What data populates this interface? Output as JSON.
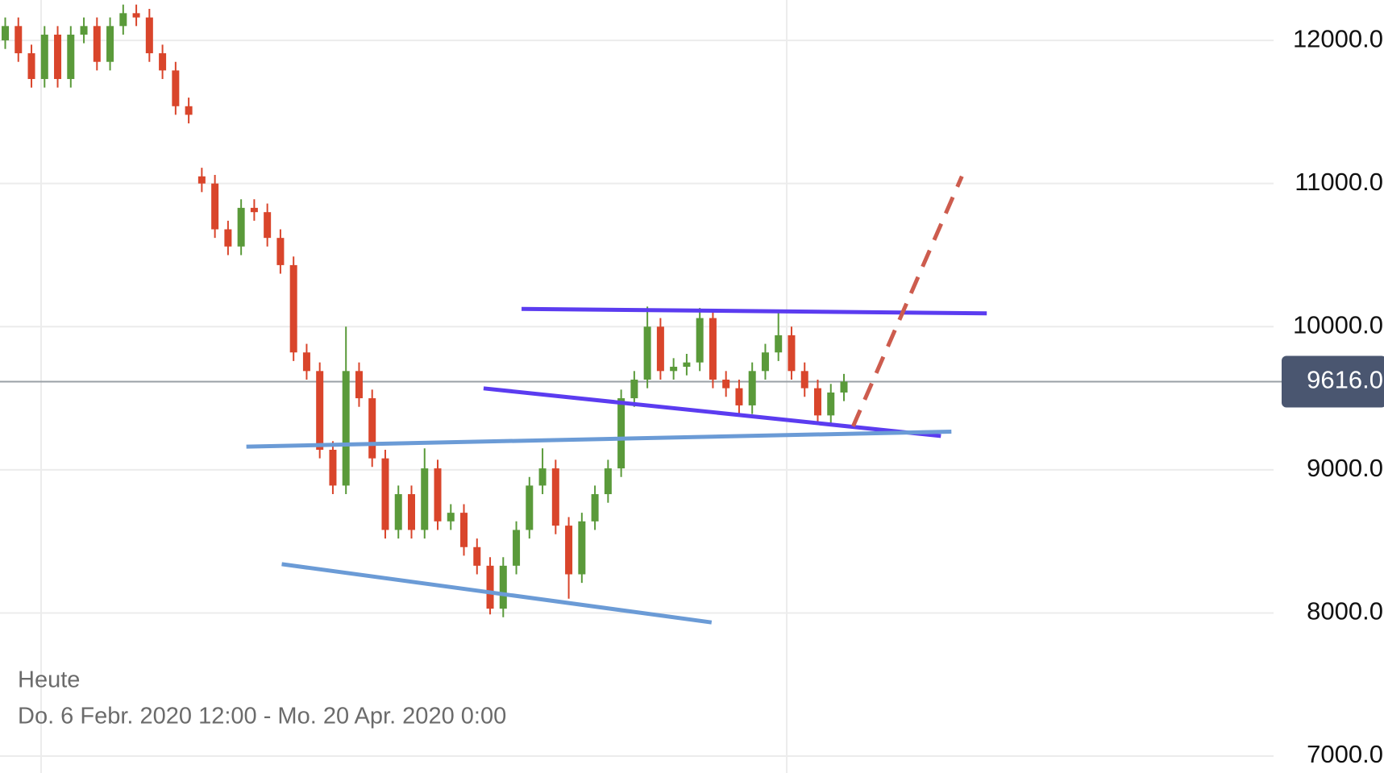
{
  "chart_data": {
    "type": "candlestick",
    "caption": "Heute",
    "date_range": "Do. 6 Febr. 2020 12:00 - Mo. 20 Apr. 2020 0:00",
    "x": [
      0,
      1,
      2,
      3,
      4,
      5,
      6,
      7,
      8,
      9,
      10,
      11,
      12,
      13,
      14,
      15,
      16,
      17,
      18,
      19,
      20,
      21,
      22,
      23,
      24,
      25,
      26,
      27,
      28,
      29,
      30,
      31,
      32,
      33,
      34,
      35,
      36,
      37,
      38,
      39,
      40,
      41,
      42,
      43,
      44,
      45,
      46,
      47,
      48,
      49,
      50,
      51,
      52,
      53,
      54,
      55,
      56,
      57,
      58,
      59,
      60,
      61,
      62,
      63,
      64
    ],
    "open": [
      12000,
      12100,
      11910,
      11730,
      12040,
      11730,
      12040,
      12100,
      11850,
      12100,
      12190,
      12160,
      11910,
      11790,
      11540,
      11050,
      11000,
      10680,
      10560,
      10830,
      10800,
      10620,
      10430,
      9820,
      9690,
      9140,
      8890,
      9690,
      9500,
      9080,
      8580,
      8830,
      8580,
      9010,
      8640,
      8700,
      8460,
      8330,
      8030,
      8330,
      8580,
      8890,
      9010,
      8610,
      8270,
      8640,
      8830,
      9010,
      9500,
      9630,
      10000,
      9690,
      9720,
      9750,
      10060,
      9630,
      9570,
      9450,
      9690,
      9820,
      9940,
      9690,
      9570,
      9380,
      9540
    ],
    "high": [
      12160,
      12160,
      11970,
      12100,
      12100,
      12100,
      12160,
      12160,
      12160,
      12250,
      12250,
      12220,
      11970,
      11850,
      11600,
      11110,
      11060,
      10740,
      10890,
      10890,
      10860,
      10680,
      10490,
      9880,
      9750,
      9200,
      10000,
      9750,
      9560,
      9140,
      8890,
      8890,
      9150,
      9070,
      8760,
      8760,
      8520,
      8390,
      8390,
      8640,
      8950,
      9150,
      9070,
      8670,
      8700,
      8890,
      9070,
      9560,
      9690,
      10140,
      10060,
      9780,
      9810,
      10130,
      10120,
      9690,
      9630,
      9750,
      9880,
      10100,
      10000,
      9750,
      9630,
      9600,
      9670
    ],
    "low": [
      11940,
      11850,
      11670,
      11670,
      11670,
      11670,
      11980,
      11790,
      11790,
      12040,
      12100,
      11850,
      11730,
      11480,
      11420,
      10940,
      10620,
      10500,
      10500,
      10740,
      10560,
      10370,
      9760,
      9630,
      9080,
      8830,
      8830,
      9440,
      9020,
      8520,
      8520,
      8520,
      8520,
      8580,
      8580,
      8400,
      8270,
      7990,
      7970,
      8270,
      8520,
      8830,
      8550,
      8100,
      8210,
      8580,
      8770,
      8950,
      9440,
      9570,
      9630,
      9630,
      9660,
      9690,
      9570,
      9510,
      9390,
      9390,
      9630,
      9760,
      9630,
      9510,
      9320,
      9320,
      9480
    ],
    "close": [
      12100,
      11910,
      11730,
      12040,
      11730,
      12040,
      12100,
      11850,
      12100,
      12190,
      12160,
      11910,
      11790,
      11540,
      11480,
      11000,
      10680,
      10560,
      10830,
      10800,
      10620,
      10430,
      9820,
      9690,
      9140,
      8890,
      9690,
      9500,
      9080,
      8580,
      8830,
      8580,
      9010,
      8640,
      8700,
      8460,
      8330,
      8030,
      8330,
      8580,
      8890,
      9010,
      8610,
      8270,
      8640,
      8830,
      9010,
      9500,
      9630,
      10000,
      9690,
      9720,
      9750,
      10060,
      9630,
      9570,
      9450,
      9690,
      9820,
      9940,
      9690,
      9570,
      9380,
      9540,
      9616
    ],
    "up_color": "#5a9a3a",
    "down_color": "#d9452b",
    "xlim": [
      -0.4,
      96.6
    ],
    "ylim": [
      6882,
      12282
    ],
    "yticks": [
      {
        "value": 7000,
        "label": "7000.0"
      },
      {
        "value": 8000,
        "label": "8000.0"
      },
      {
        "value": 9000,
        "label": "9000.0"
      },
      {
        "value": 10000,
        "label": "10000.0"
      },
      {
        "value": 11000,
        "label": "11000.0"
      },
      {
        "value": 12000,
        "label": "12000.0"
      }
    ],
    "grid": true,
    "last_price": {
      "value": 9616,
      "label": "9616.0"
    },
    "trend_lines": [
      {
        "color": "#5b3cf0",
        "dashed": false,
        "x": [
          39.4,
          74.9
        ],
        "y": [
          10124,
          10093
        ]
      },
      {
        "color": "#5b3cf0",
        "dashed": false,
        "x": [
          36.5,
          71.4
        ],
        "y": [
          9569,
          9236
        ]
      },
      {
        "color": "#6b9bd6",
        "dashed": false,
        "x": [
          18.4,
          72.2
        ],
        "y": [
          9162,
          9267
        ]
      },
      {
        "color": "#6b9bd6",
        "dashed": false,
        "x": [
          21.1,
          53.9
        ],
        "y": [
          8341,
          7934
        ]
      },
      {
        "color": "#cd5c4e",
        "dashed": true,
        "x": [
          64.7,
          73.0
        ],
        "y": [
          9304,
          11050
        ]
      }
    ]
  }
}
